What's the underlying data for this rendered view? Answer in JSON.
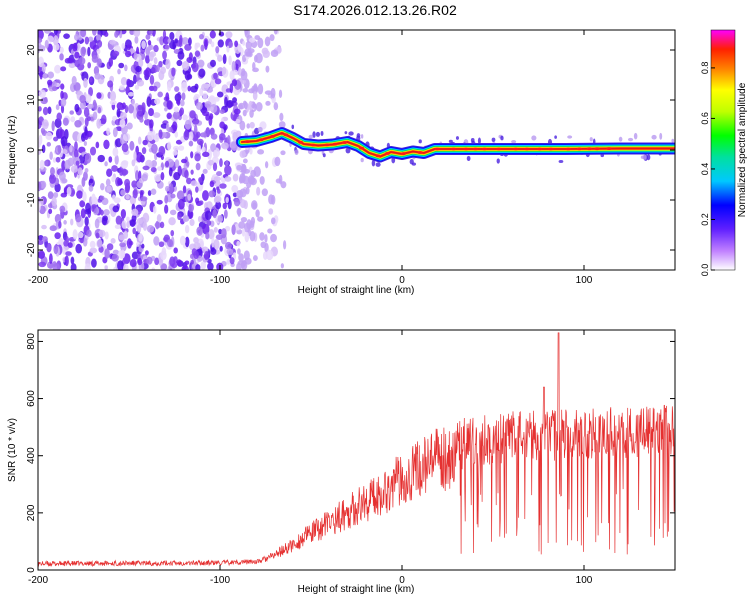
{
  "title": "S174.2026.012.13.26.R02",
  "colors": {
    "signal": "#e53030",
    "frame": "#000000"
  },
  "chart_data": [
    {
      "type": "heatmap",
      "name": "spectrogram",
      "xlabel": "Height of straight line (km)",
      "ylabel": "Frequency (Hz)",
      "xlim": [
        -200,
        150
      ],
      "ylim": [
        -24,
        24
      ],
      "xticks": [
        -200,
        -100,
        0,
        100
      ],
      "yticks": [
        -20,
        -10,
        0,
        10,
        20
      ],
      "noise_region_x": [
        -200,
        -80
      ],
      "ridge": [
        {
          "x": -88,
          "y": 1.6
        },
        {
          "x": -80,
          "y": 1.8
        },
        {
          "x": -72,
          "y": 2.6
        },
        {
          "x": -66,
          "y": 3.4
        },
        {
          "x": -60,
          "y": 2.4
        },
        {
          "x": -54,
          "y": 1.2
        },
        {
          "x": -46,
          "y": 0.9
        },
        {
          "x": -38,
          "y": 1.1
        },
        {
          "x": -30,
          "y": 1.6
        },
        {
          "x": -24,
          "y": 0.8
        },
        {
          "x": -18,
          "y": -0.6
        },
        {
          "x": -12,
          "y": -1.3
        },
        {
          "x": -6,
          "y": -0.4
        },
        {
          "x": 0,
          "y": -0.8
        },
        {
          "x": 6,
          "y": -0.3
        },
        {
          "x": 12,
          "y": -0.6
        },
        {
          "x": 18,
          "y": 0.2
        },
        {
          "x": 30,
          "y": 0.2
        },
        {
          "x": 60,
          "y": 0.2
        },
        {
          "x": 90,
          "y": 0.2
        },
        {
          "x": 120,
          "y": 0.3
        },
        {
          "x": 150,
          "y": 0.3
        }
      ],
      "colorbar": {
        "label": "Normalized spectral amplitude",
        "range": [
          0,
          0.95
        ],
        "ticks": [
          0.0,
          0.2,
          0.4,
          0.6,
          0.8
        ]
      }
    },
    {
      "type": "line",
      "name": "snr",
      "xlabel": "Height of straight line (km)",
      "ylabel": "SNR (10 * v/v)",
      "xlim": [
        -200,
        150
      ],
      "ylim": [
        0,
        840
      ],
      "xticks": [
        -200,
        -100,
        0,
        100
      ],
      "yticks": [
        0,
        200,
        400,
        600,
        800
      ],
      "envelope": [
        {
          "x": -200,
          "y": 22
        },
        {
          "x": -100,
          "y": 25
        },
        {
          "x": -80,
          "y": 30
        },
        {
          "x": -72,
          "y": 50
        },
        {
          "x": -60,
          "y": 95
        },
        {
          "x": -50,
          "y": 140
        },
        {
          "x": -40,
          "y": 180
        },
        {
          "x": -30,
          "y": 220
        },
        {
          "x": -20,
          "y": 260
        },
        {
          "x": -10,
          "y": 300
        },
        {
          "x": 0,
          "y": 350
        },
        {
          "x": 10,
          "y": 390
        },
        {
          "x": 20,
          "y": 420
        },
        {
          "x": 30,
          "y": 445
        },
        {
          "x": 40,
          "y": 460
        },
        {
          "x": 50,
          "y": 470
        },
        {
          "x": 60,
          "y": 475
        },
        {
          "x": 70,
          "y": 478
        },
        {
          "x": 80,
          "y": 480
        },
        {
          "x": 90,
          "y": 482
        },
        {
          "x": 100,
          "y": 485
        },
        {
          "x": 110,
          "y": 488
        },
        {
          "x": 120,
          "y": 490
        },
        {
          "x": 130,
          "y": 492
        },
        {
          "x": 140,
          "y": 495
        },
        {
          "x": 150,
          "y": 498
        }
      ],
      "peak": {
        "x": 86,
        "y": 830
      }
    }
  ]
}
